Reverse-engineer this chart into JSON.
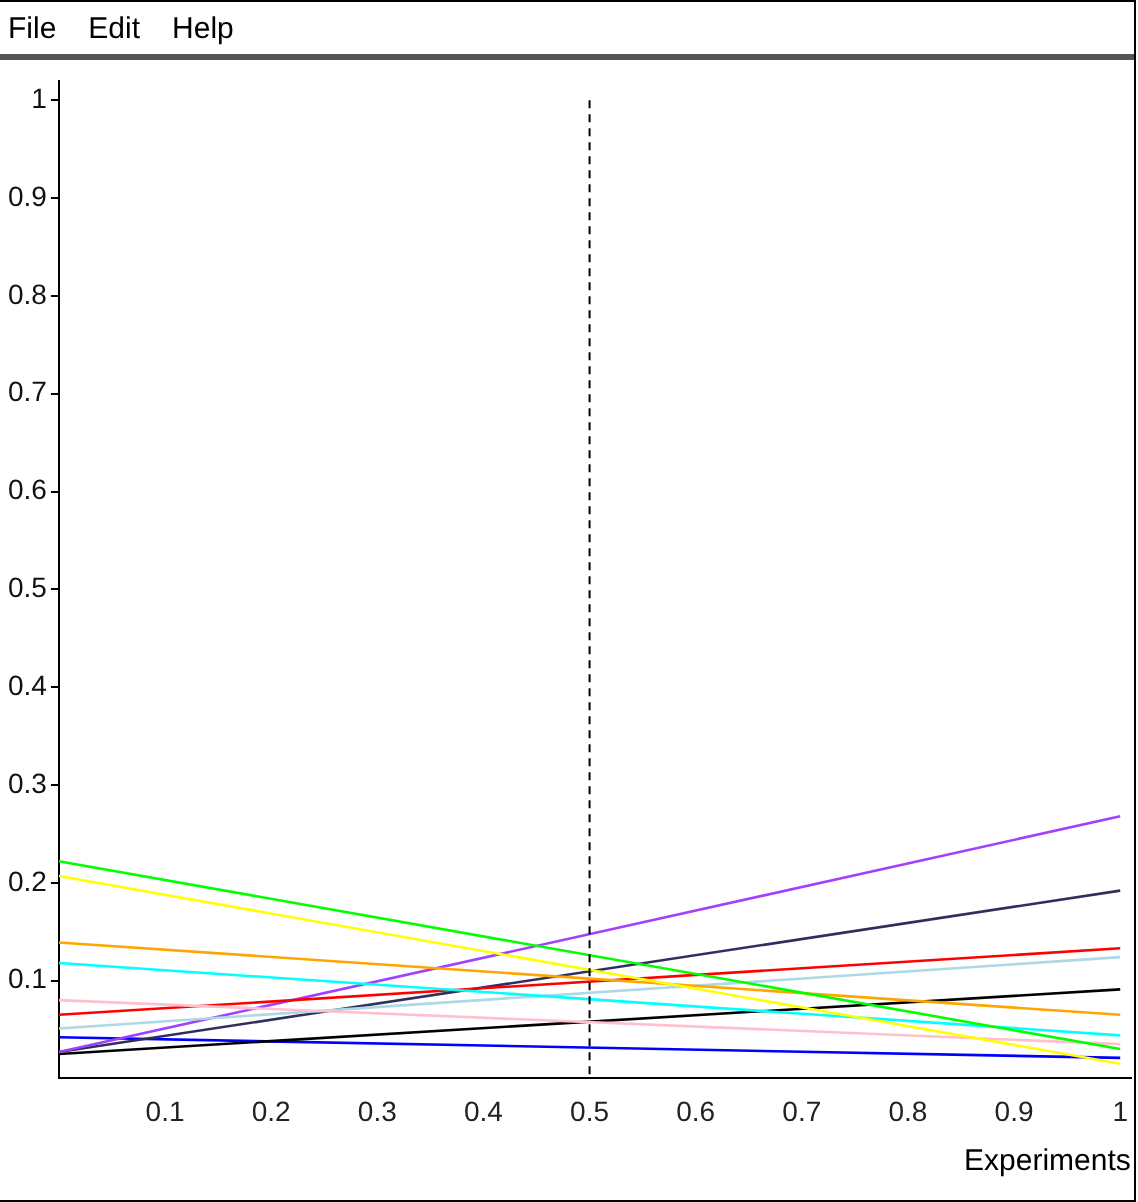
{
  "chart_data": {
    "type": "line",
    "xlabel": "Experiments",
    "x": [
      0,
      1
    ],
    "annotations": [
      "File",
      "Edit",
      "Help"
    ],
    "series": [
      {
        "color": "#00ff00",
        "values": [
          0.222,
          0.03
        ]
      },
      {
        "color": "#ffff00",
        "values": [
          0.207,
          0.015
        ]
      },
      {
        "color": "#ffa500",
        "values": [
          0.139,
          0.065
        ]
      },
      {
        "color": "#00ffff",
        "values": [
          0.118,
          0.044
        ]
      },
      {
        "color": "#ffc0cb",
        "values": [
          0.08,
          0.035
        ]
      },
      {
        "color": "#ff0000",
        "values": [
          0.065,
          0.133
        ]
      },
      {
        "color": "#add8e6",
        "values": [
          0.051,
          0.124
        ]
      },
      {
        "color": "#a040ff",
        "values": [
          0.027,
          0.268
        ]
      },
      {
        "color": "#2f2f5f",
        "values": [
          0.027,
          0.192
        ]
      },
      {
        "color": "#000000",
        "values": [
          0.025,
          0.091
        ]
      },
      {
        "color": "#0000ff",
        "values": [
          0.042,
          0.021
        ]
      }
    ],
    "xlim": [
      0,
      1.01
    ],
    "xticks": [
      0.1,
      0.2,
      0.3,
      0.4,
      0.5,
      0.6,
      0.7,
      0.8,
      0.9,
      1
    ],
    "ylim": [
      0,
      1.02
    ],
    "yticks": [
      0.1,
      0.2,
      0.3,
      0.4,
      0.5,
      0.6,
      0.7,
      0.8,
      0.9,
      1
    ],
    "ref_lines": [
      {
        "axis": "x",
        "value": 0.5,
        "color": "#000000",
        "line_style": "dashed"
      }
    ],
    "grid": false,
    "legend": false,
    "marker": "none",
    "line_style": "solid"
  }
}
